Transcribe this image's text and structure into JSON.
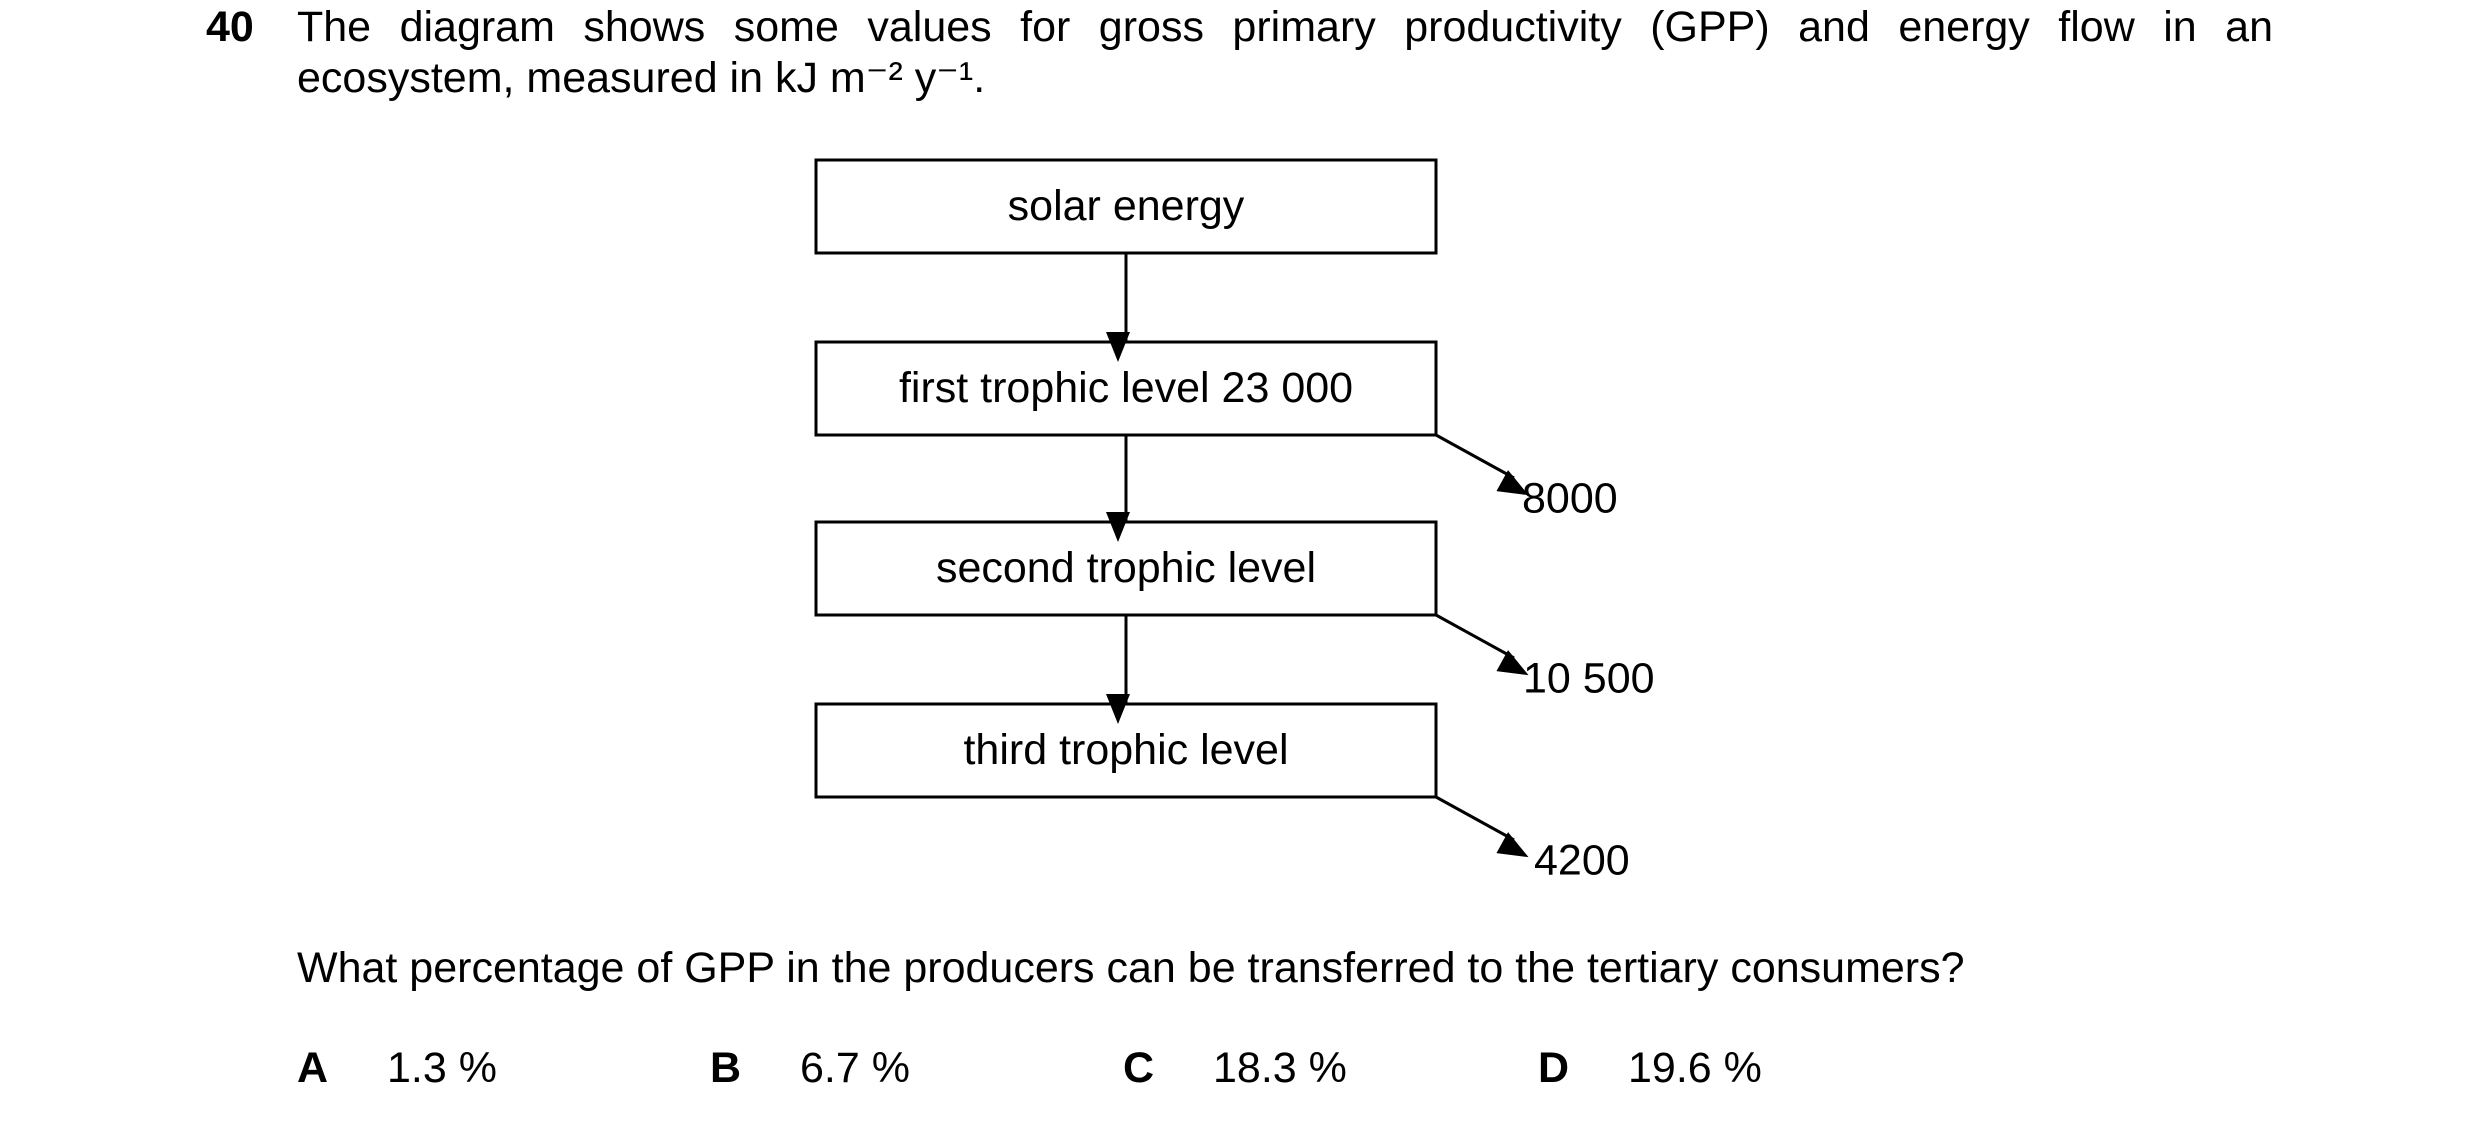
{
  "question": {
    "number": "40",
    "stem_lines": [
      "The diagram shows some values for gross primary productivity (GPP) and energy flow in an",
      "ecosystem, measured in kJ m⁻² y⁻¹."
    ],
    "diagram": {
      "boxes": [
        "solar energy",
        "first trophic level 23 000",
        "second trophic level",
        "third trophic level"
      ],
      "losses": [
        "8000",
        "10 500",
        "4200"
      ]
    },
    "prompt": "What percentage of GPP in the producers can be transferred to the tertiary consumers?",
    "options": [
      {
        "letter": "A",
        "text": "1.3 %"
      },
      {
        "letter": "B",
        "text": "6.7 %"
      },
      {
        "letter": "C",
        "text": "18.3 %"
      },
      {
        "letter": "D",
        "text": "19.6 %"
      }
    ]
  }
}
